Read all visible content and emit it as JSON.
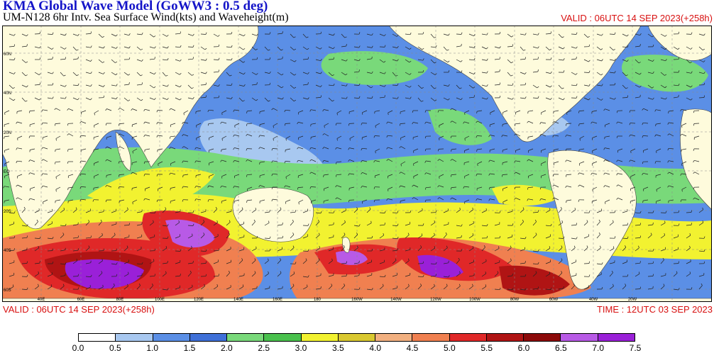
{
  "header": {
    "title": "KMA  Global Wave Model (GoWW3 : 0.5 deg)",
    "subtitle": "UM-N128  6hr Intv. Sea Surface Wind(kts) and Waveheight(m)",
    "valid_top": "VALID : 06UTC 14 SEP 2023(+258h)"
  },
  "footer": {
    "valid": "VALID : 06UTC 14 SEP 2023(+258h)",
    "time": "TIME : 12UTC 03 SEP 2023"
  },
  "map": {
    "lat_labels": [
      "60N",
      "40N",
      "20N",
      "EQ",
      "20S",
      "40S",
      "60S"
    ],
    "lon_labels_bottom": [
      "40E",
      "60E",
      "80E",
      "100E",
      "120E",
      "140E",
      "160E",
      "180",
      "160W",
      "140W",
      "120W",
      "100W",
      "80W",
      "60W",
      "40W",
      "20W"
    ],
    "land_color": "#fefbdc",
    "ocean_color": "#5b8fe6"
  },
  "legend": {
    "labels": [
      "0.0",
      "0.5",
      "1.0",
      "1.5",
      "2.0",
      "2.5",
      "3.0",
      "3.5",
      "4.0",
      "4.5",
      "5.0",
      "5.5",
      "6.0",
      "6.5",
      "7.0",
      "7.5"
    ],
    "colors": [
      "#ffffff",
      "#a8c8f0",
      "#5b8fe6",
      "#3f70d8",
      "#79d97a",
      "#49c14d",
      "#f2f230",
      "#d9c830",
      "#f2b080",
      "#f08050",
      "#e02828",
      "#b01414",
      "#8c0a0a",
      "#b85ae6",
      "#9a20d8"
    ]
  }
}
